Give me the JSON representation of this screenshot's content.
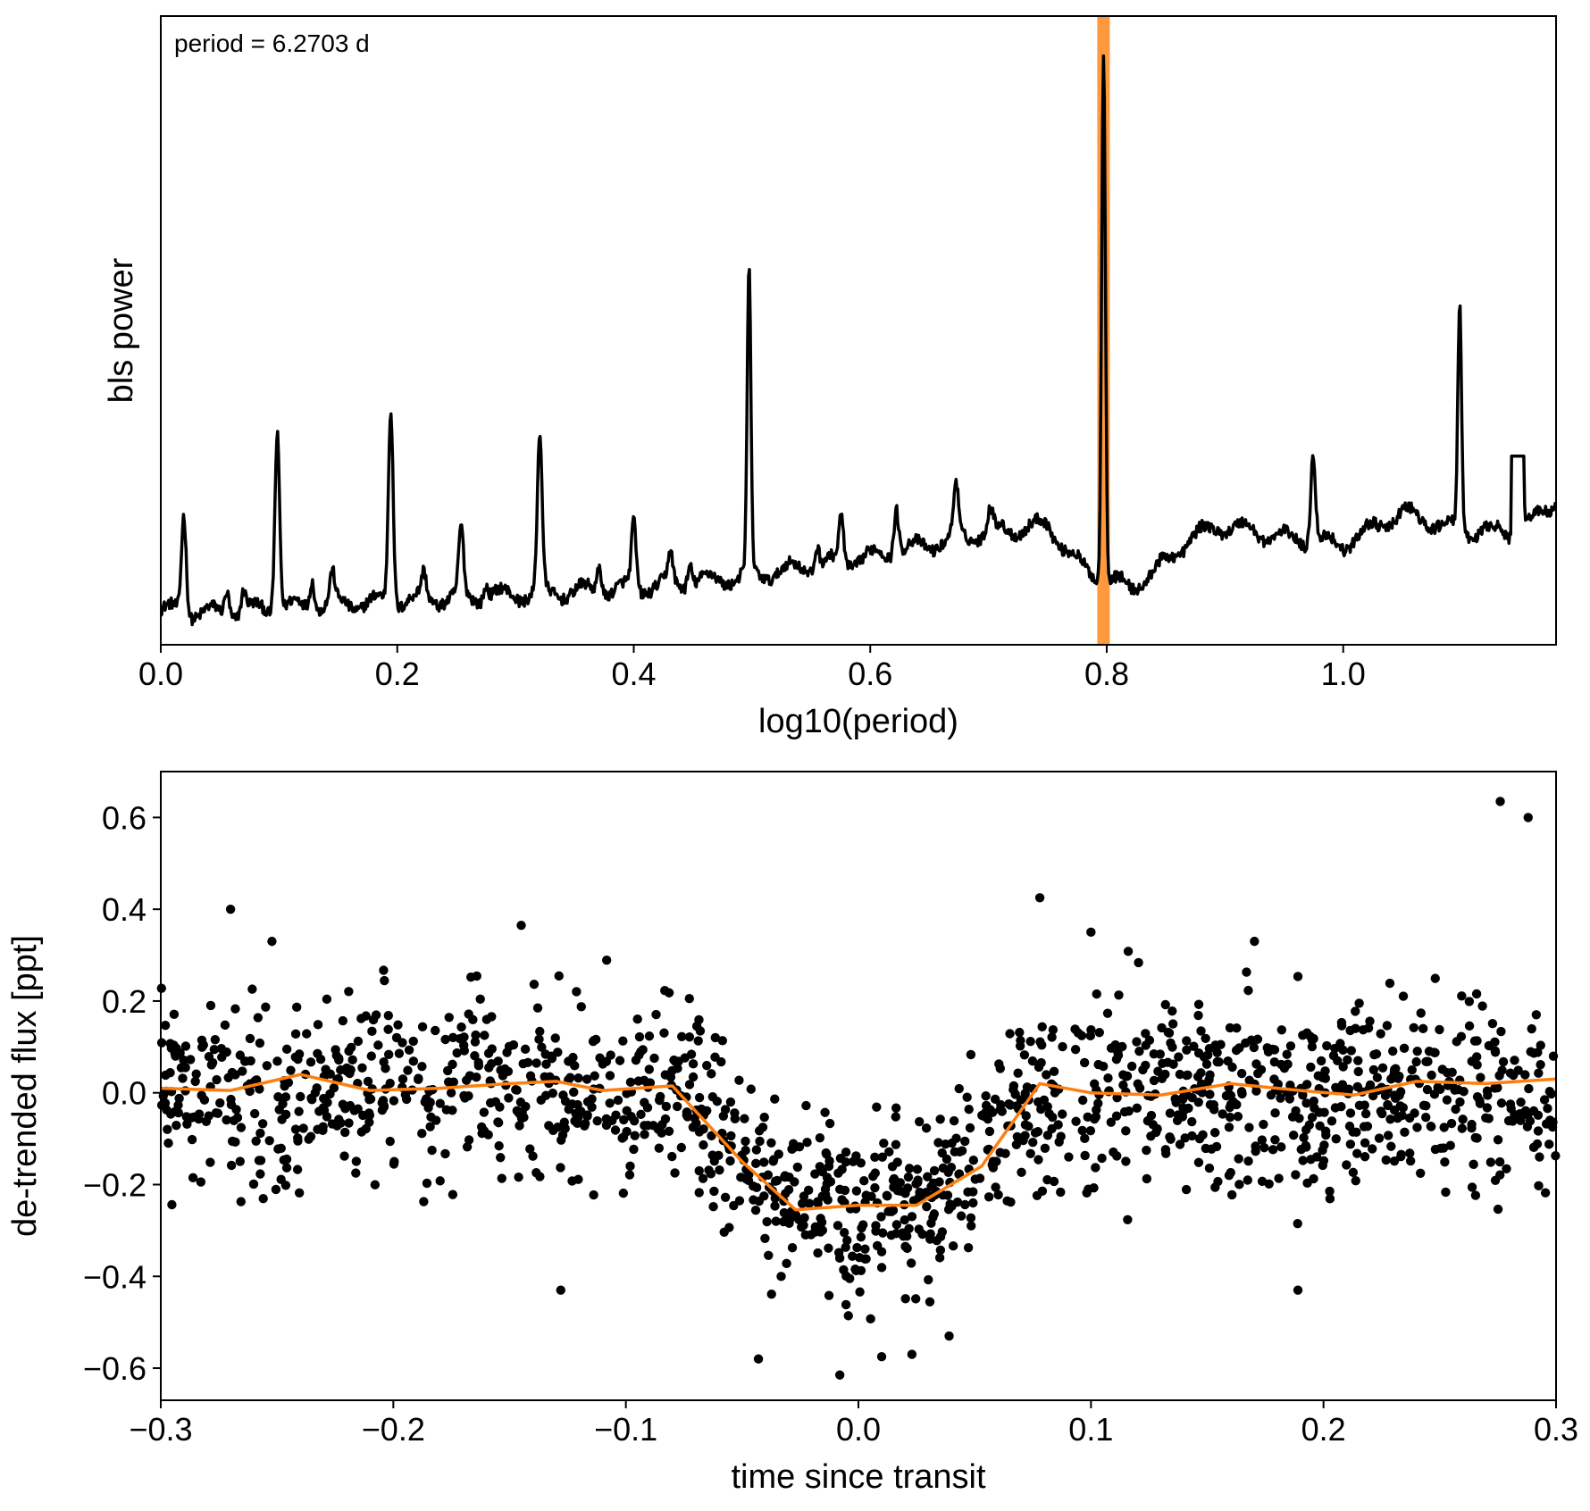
{
  "chart_data": [
    {
      "type": "line",
      "name": "bls-periodogram",
      "xlabel": "log10(period)",
      "ylabel": "bls power",
      "xlim": [
        0.0,
        1.18
      ],
      "ylim": [
        0.0,
        1.0
      ],
      "x_ticks": [
        0.0,
        0.2,
        0.4,
        0.6,
        0.8,
        1.0
      ],
      "x_tick_labels": [
        "0.0",
        "0.2",
        "0.4",
        "0.6",
        "0.8",
        "1.0"
      ],
      "y_ticks_shown": false,
      "annotation": "period = 6.2703 d",
      "highlight": {
        "x": 0.7973,
        "color": "#ff7f0e"
      },
      "line_color": "#000000",
      "baseline": [
        [
          0.0,
          0.055
        ],
        [
          0.05,
          0.05
        ],
        [
          0.1,
          0.06
        ],
        [
          0.15,
          0.065
        ],
        [
          0.2,
          0.07
        ],
        [
          0.25,
          0.075
        ],
        [
          0.3,
          0.08
        ],
        [
          0.35,
          0.085
        ],
        [
          0.4,
          0.09
        ],
        [
          0.45,
          0.1
        ],
        [
          0.5,
          0.11
        ],
        [
          0.55,
          0.125
        ],
        [
          0.6,
          0.14
        ],
        [
          0.65,
          0.16
        ],
        [
          0.7,
          0.18
        ],
        [
          0.75,
          0.19
        ],
        [
          0.78,
          0.12
        ],
        [
          0.82,
          0.09
        ],
        [
          0.85,
          0.13
        ],
        [
          0.87,
          0.17
        ],
        [
          0.9,
          0.19
        ],
        [
          0.95,
          0.17
        ],
        [
          1.0,
          0.16
        ],
        [
          1.05,
          0.21
        ],
        [
          1.1,
          0.18
        ],
        [
          1.15,
          0.18
        ],
        [
          1.18,
          0.23
        ]
      ],
      "peaks": [
        {
          "x": 0.0195,
          "y": 0.21
        },
        {
          "x": 0.056,
          "y": 0.09
        },
        {
          "x": 0.07,
          "y": 0.085
        },
        {
          "x": 0.0985,
          "y": 0.345
        },
        {
          "x": 0.128,
          "y": 0.11
        },
        {
          "x": 0.145,
          "y": 0.11
        },
        {
          "x": 0.1945,
          "y": 0.38
        },
        {
          "x": 0.2225,
          "y": 0.11
        },
        {
          "x": 0.254,
          "y": 0.18
        },
        {
          "x": 0.275,
          "y": 0.1
        },
        {
          "x": 0.3205,
          "y": 0.328
        },
        {
          "x": 0.371,
          "y": 0.13
        },
        {
          "x": 0.4,
          "y": 0.195
        },
        {
          "x": 0.431,
          "y": 0.14
        },
        {
          "x": 0.4475,
          "y": 0.135
        },
        {
          "x": 0.4975,
          "y": 0.59
        },
        {
          "x": 0.555,
          "y": 0.16
        },
        {
          "x": 0.5755,
          "y": 0.205
        },
        {
          "x": 0.622,
          "y": 0.225
        },
        {
          "x": 0.6725,
          "y": 0.25
        },
        {
          "x": 0.7015,
          "y": 0.215
        },
        {
          "x": 0.7973,
          "y": 0.955
        },
        {
          "x": 0.9745,
          "y": 0.31
        },
        {
          "x": 1.0985,
          "y": 0.545
        },
        {
          "x": 1.15,
          "y": 0.3
        }
      ]
    },
    {
      "type": "scatter",
      "name": "folded-light-curve",
      "xlabel": "time since transit",
      "ylabel": "de-trended flux [ppt]",
      "xlim": [
        -0.3,
        0.3
      ],
      "ylim": [
        -0.67,
        0.7
      ],
      "x_ticks": [
        -0.3,
        -0.2,
        -0.1,
        0.0,
        0.1,
        0.2,
        0.3
      ],
      "x_tick_labels": [
        "−0.3",
        "−0.2",
        "−0.1",
        "0.0",
        "0.1",
        "0.2",
        "0.3"
      ],
      "y_ticks": [
        -0.6,
        -0.4,
        -0.2,
        0.0,
        0.2,
        0.4,
        0.6
      ],
      "y_tick_labels": [
        "−0.6",
        "−0.4",
        "−0.2",
        "0.0",
        "0.2",
        "0.4",
        "0.6"
      ],
      "point_color": "#000000",
      "model_color": "#ff7f0e",
      "transit": {
        "depth": -0.25,
        "ingress_start": -0.078,
        "ingress_end": -0.028,
        "egress_start": 0.025,
        "egress_end": 0.078
      },
      "scatter_sigma": 0.1,
      "n_points": 1500,
      "outliers": [
        [
          -0.27,
          0.4
        ],
        [
          -0.145,
          0.365
        ],
        [
          -0.128,
          -0.43
        ],
        [
          -0.043,
          -0.58
        ],
        [
          -0.008,
          -0.615
        ],
        [
          0.01,
          -0.575
        ],
        [
          0.023,
          -0.57
        ],
        [
          0.039,
          -0.53
        ],
        [
          0.078,
          0.425
        ],
        [
          0.1,
          0.35
        ],
        [
          0.189,
          -0.43
        ],
        [
          0.276,
          0.635
        ],
        [
          0.288,
          0.6
        ]
      ],
      "model_line": {
        "x": [
          -0.3,
          -0.27,
          -0.24,
          -0.21,
          -0.18,
          -0.15,
          -0.13,
          -0.11,
          -0.08,
          -0.05,
          -0.027,
          0.0,
          0.025,
          0.053,
          0.078,
          0.1,
          0.13,
          0.16,
          0.19,
          0.213,
          0.24,
          0.27,
          0.3
        ],
        "y": [
          0.01,
          0.005,
          0.04,
          0.005,
          0.01,
          0.02,
          0.025,
          0.005,
          0.015,
          -0.15,
          -0.255,
          -0.245,
          -0.245,
          -0.16,
          0.02,
          0.0,
          -0.005,
          0.02,
          0.005,
          -0.005,
          0.025,
          0.02,
          0.03
        ]
      }
    }
  ]
}
